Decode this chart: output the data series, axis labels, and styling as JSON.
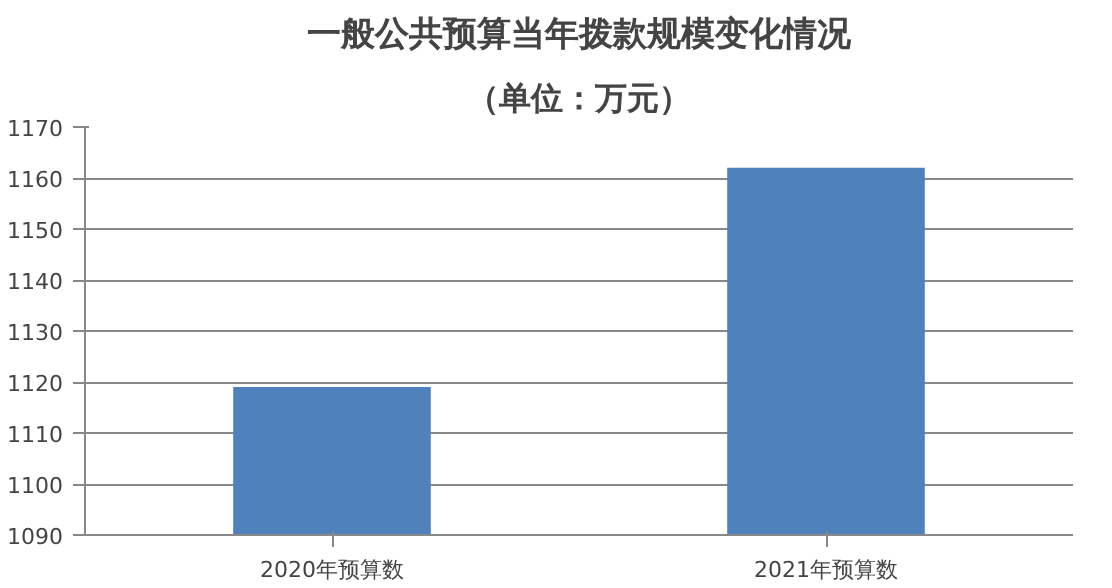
{
  "chart_data": {
    "type": "bar",
    "title": "一般公共预算当年拨款规模变化情况",
    "subtitle": "（单位：万元）",
    "categories": [
      "2020年预算数",
      "2021年预算数"
    ],
    "values": [
      1119,
      1162
    ],
    "color": "#4f81bd",
    "ylim": [
      1090,
      1170
    ],
    "yticks": [
      1090,
      1100,
      1110,
      1120,
      1130,
      1140,
      1150,
      1160,
      1170
    ],
    "grid": "y"
  }
}
